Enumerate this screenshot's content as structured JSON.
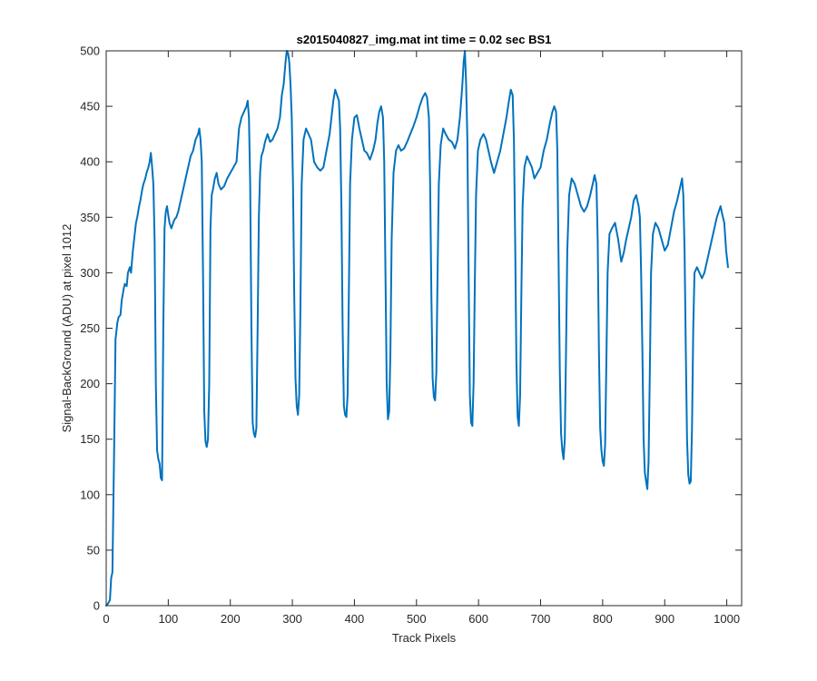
{
  "chart_data": {
    "type": "line",
    "title": "s2015040827_img.mat int time = 0.02 sec   BS1",
    "xlabel": "Track Pixels",
    "ylabel": "Signal-BackGround (ADU) at pixel 1012",
    "xlim": [
      0,
      1024
    ],
    "ylim": [
      0,
      500
    ],
    "xticks": [
      0,
      100,
      200,
      300,
      400,
      500,
      600,
      700,
      800,
      900,
      1000
    ],
    "yticks": [
      0,
      50,
      100,
      150,
      200,
      250,
      300,
      350,
      400,
      450,
      500
    ],
    "grid": false,
    "series": [
      {
        "color": "#0072BD",
        "points": [
          [
            0,
            0
          ],
          [
            3,
            2
          ],
          [
            6,
            5
          ],
          [
            8,
            25
          ],
          [
            10,
            30
          ],
          [
            13,
            150
          ],
          [
            15,
            240
          ],
          [
            18,
            255
          ],
          [
            20,
            260
          ],
          [
            23,
            262
          ],
          [
            25,
            275
          ],
          [
            28,
            285
          ],
          [
            30,
            290
          ],
          [
            33,
            288
          ],
          [
            35,
            300
          ],
          [
            38,
            305
          ],
          [
            40,
            300
          ],
          [
            43,
            320
          ],
          [
            45,
            330
          ],
          [
            48,
            345
          ],
          [
            50,
            350
          ],
          [
            53,
            360
          ],
          [
            55,
            365
          ],
          [
            58,
            375
          ],
          [
            60,
            380
          ],
          [
            63,
            385
          ],
          [
            65,
            390
          ],
          [
            68,
            395
          ],
          [
            70,
            400
          ],
          [
            72,
            408
          ],
          [
            74,
            395
          ],
          [
            76,
            380
          ],
          [
            78,
            330
          ],
          [
            80,
            200
          ],
          [
            82,
            140
          ],
          [
            84,
            132
          ],
          [
            86,
            128
          ],
          [
            88,
            115
          ],
          [
            90,
            113
          ],
          [
            92,
            250
          ],
          [
            94,
            340
          ],
          [
            96,
            355
          ],
          [
            98,
            360
          ],
          [
            100,
            352
          ],
          [
            102,
            345
          ],
          [
            105,
            340
          ],
          [
            108,
            345
          ],
          [
            110,
            348
          ],
          [
            113,
            350
          ],
          [
            116,
            355
          ],
          [
            120,
            365
          ],
          [
            124,
            375
          ],
          [
            128,
            385
          ],
          [
            132,
            395
          ],
          [
            136,
            405
          ],
          [
            140,
            410
          ],
          [
            144,
            420
          ],
          [
            148,
            425
          ],
          [
            150,
            430
          ],
          [
            152,
            420
          ],
          [
            154,
            400
          ],
          [
            156,
            300
          ],
          [
            158,
            175
          ],
          [
            160,
            148
          ],
          [
            162,
            143
          ],
          [
            164,
            150
          ],
          [
            166,
            200
          ],
          [
            168,
            340
          ],
          [
            170,
            370
          ],
          [
            172,
            375
          ],
          [
            175,
            385
          ],
          [
            178,
            390
          ],
          [
            181,
            380
          ],
          [
            185,
            375
          ],
          [
            190,
            378
          ],
          [
            195,
            385
          ],
          [
            200,
            390
          ],
          [
            205,
            395
          ],
          [
            210,
            400
          ],
          [
            214,
            430
          ],
          [
            218,
            440
          ],
          [
            222,
            445
          ],
          [
            226,
            450
          ],
          [
            228,
            455
          ],
          [
            230,
            440
          ],
          [
            232,
            380
          ],
          [
            234,
            250
          ],
          [
            236,
            165
          ],
          [
            238,
            155
          ],
          [
            240,
            152
          ],
          [
            242,
            160
          ],
          [
            244,
            250
          ],
          [
            246,
            350
          ],
          [
            248,
            390
          ],
          [
            250,
            405
          ],
          [
            253,
            410
          ],
          [
            256,
            418
          ],
          [
            260,
            425
          ],
          [
            264,
            418
          ],
          [
            268,
            420
          ],
          [
            272,
            425
          ],
          [
            276,
            430
          ],
          [
            280,
            440
          ],
          [
            283,
            460
          ],
          [
            286,
            470
          ],
          [
            289,
            490
          ],
          [
            291,
            500
          ],
          [
            293,
            498
          ],
          [
            295,
            490
          ],
          [
            297,
            470
          ],
          [
            299,
            440
          ],
          [
            301,
            380
          ],
          [
            303,
            280
          ],
          [
            305,
            205
          ],
          [
            307,
            180
          ],
          [
            309,
            172
          ],
          [
            311,
            190
          ],
          [
            313,
            270
          ],
          [
            315,
            380
          ],
          [
            318,
            420
          ],
          [
            322,
            430
          ],
          [
            326,
            425
          ],
          [
            330,
            420
          ],
          [
            335,
            400
          ],
          [
            340,
            395
          ],
          [
            345,
            392
          ],
          [
            350,
            395
          ],
          [
            355,
            410
          ],
          [
            360,
            425
          ],
          [
            363,
            440
          ],
          [
            366,
            455
          ],
          [
            369,
            465
          ],
          [
            372,
            460
          ],
          [
            375,
            455
          ],
          [
            377,
            430
          ],
          [
            379,
            360
          ],
          [
            381,
            250
          ],
          [
            383,
            180
          ],
          [
            385,
            172
          ],
          [
            387,
            170
          ],
          [
            389,
            190
          ],
          [
            391,
            280
          ],
          [
            393,
            380
          ],
          [
            396,
            420
          ],
          [
            400,
            440
          ],
          [
            404,
            442
          ],
          [
            408,
            430
          ],
          [
            412,
            420
          ],
          [
            416,
            410
          ],
          [
            420,
            408
          ],
          [
            425,
            402
          ],
          [
            430,
            410
          ],
          [
            434,
            420
          ],
          [
            437,
            435
          ],
          [
            440,
            445
          ],
          [
            443,
            450
          ],
          [
            446,
            440
          ],
          [
            448,
            400
          ],
          [
            450,
            300
          ],
          [
            452,
            200
          ],
          [
            454,
            168
          ],
          [
            456,
            175
          ],
          [
            458,
            230
          ],
          [
            460,
            330
          ],
          [
            463,
            390
          ],
          [
            467,
            410
          ],
          [
            471,
            415
          ],
          [
            475,
            410
          ],
          [
            480,
            412
          ],
          [
            485,
            418
          ],
          [
            490,
            425
          ],
          [
            495,
            432
          ],
          [
            500,
            440
          ],
          [
            505,
            450
          ],
          [
            510,
            458
          ],
          [
            514,
            462
          ],
          [
            517,
            458
          ],
          [
            520,
            440
          ],
          [
            522,
            380
          ],
          [
            524,
            280
          ],
          [
            526,
            205
          ],
          [
            528,
            188
          ],
          [
            530,
            185
          ],
          [
            532,
            210
          ],
          [
            534,
            300
          ],
          [
            536,
            380
          ],
          [
            539,
            415
          ],
          [
            543,
            430
          ],
          [
            547,
            425
          ],
          [
            552,
            420
          ],
          [
            557,
            418
          ],
          [
            562,
            412
          ],
          [
            566,
            420
          ],
          [
            570,
            440
          ],
          [
            574,
            470
          ],
          [
            576,
            490
          ],
          [
            578,
            500
          ],
          [
            580,
            470
          ],
          [
            582,
            420
          ],
          [
            584,
            300
          ],
          [
            586,
            190
          ],
          [
            588,
            165
          ],
          [
            590,
            162
          ],
          [
            592,
            200
          ],
          [
            594,
            290
          ],
          [
            596,
            370
          ],
          [
            599,
            410
          ],
          [
            603,
            420
          ],
          [
            608,
            425
          ],
          [
            612,
            420
          ],
          [
            616,
            410
          ],
          [
            620,
            400
          ],
          [
            625,
            390
          ],
          [
            630,
            400
          ],
          [
            635,
            410
          ],
          [
            640,
            425
          ],
          [
            645,
            440
          ],
          [
            649,
            455
          ],
          [
            652,
            465
          ],
          [
            655,
            460
          ],
          [
            657,
            420
          ],
          [
            659,
            330
          ],
          [
            661,
            220
          ],
          [
            663,
            170
          ],
          [
            665,
            162
          ],
          [
            667,
            190
          ],
          [
            669,
            280
          ],
          [
            671,
            360
          ],
          [
            674,
            395
          ],
          [
            678,
            405
          ],
          [
            682,
            400
          ],
          [
            686,
            395
          ],
          [
            690,
            385
          ],
          [
            695,
            390
          ],
          [
            700,
            395
          ],
          [
            705,
            410
          ],
          [
            710,
            420
          ],
          [
            715,
            435
          ],
          [
            719,
            445
          ],
          [
            722,
            450
          ],
          [
            725,
            445
          ],
          [
            727,
            410
          ],
          [
            729,
            310
          ],
          [
            731,
            210
          ],
          [
            733,
            155
          ],
          [
            735,
            140
          ],
          [
            737,
            132
          ],
          [
            739,
            150
          ],
          [
            741,
            230
          ],
          [
            743,
            320
          ],
          [
            746,
            370
          ],
          [
            750,
            385
          ],
          [
            755,
            380
          ],
          [
            760,
            370
          ],
          [
            765,
            360
          ],
          [
            770,
            355
          ],
          [
            775,
            360
          ],
          [
            780,
            370
          ],
          [
            784,
            380
          ],
          [
            787,
            388
          ],
          [
            790,
            380
          ],
          [
            792,
            330
          ],
          [
            794,
            230
          ],
          [
            796,
            160
          ],
          [
            798,
            140
          ],
          [
            800,
            130
          ],
          [
            802,
            126
          ],
          [
            804,
            145
          ],
          [
            806,
            220
          ],
          [
            808,
            300
          ],
          [
            811,
            335
          ],
          [
            815,
            340
          ],
          [
            820,
            345
          ],
          [
            825,
            330
          ],
          [
            830,
            310
          ],
          [
            834,
            318
          ],
          [
            838,
            330
          ],
          [
            842,
            340
          ],
          [
            846,
            350
          ],
          [
            850,
            365
          ],
          [
            854,
            370
          ],
          [
            858,
            360
          ],
          [
            860,
            350
          ],
          [
            862,
            300
          ],
          [
            864,
            230
          ],
          [
            866,
            150
          ],
          [
            868,
            120
          ],
          [
            870,
            112
          ],
          [
            872,
            105
          ],
          [
            874,
            130
          ],
          [
            876,
            210
          ],
          [
            878,
            300
          ],
          [
            881,
            335
          ],
          [
            885,
            345
          ],
          [
            890,
            340
          ],
          [
            895,
            330
          ],
          [
            900,
            320
          ],
          [
            905,
            325
          ],
          [
            910,
            340
          ],
          [
            915,
            355
          ],
          [
            920,
            365
          ],
          [
            924,
            375
          ],
          [
            928,
            385
          ],
          [
            930,
            370
          ],
          [
            932,
            320
          ],
          [
            934,
            230
          ],
          [
            936,
            150
          ],
          [
            938,
            118
          ],
          [
            940,
            110
          ],
          [
            942,
            112
          ],
          [
            944,
            160
          ],
          [
            946,
            250
          ],
          [
            948,
            300
          ],
          [
            952,
            305
          ],
          [
            956,
            300
          ],
          [
            960,
            295
          ],
          [
            964,
            300
          ],
          [
            968,
            310
          ],
          [
            972,
            320
          ],
          [
            976,
            330
          ],
          [
            980,
            340
          ],
          [
            984,
            350
          ],
          [
            987,
            355
          ],
          [
            990,
            360
          ],
          [
            993,
            352
          ],
          [
            996,
            345
          ],
          [
            999,
            320
          ],
          [
            1002,
            305
          ]
        ]
      }
    ]
  }
}
